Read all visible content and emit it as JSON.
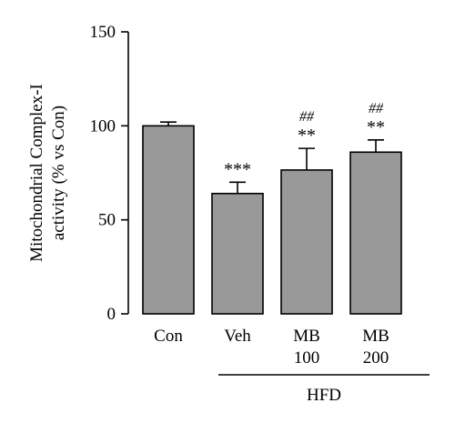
{
  "chart_data": {
    "type": "bar",
    "ylabel_lines": [
      "Mitochondrial Complex-I",
      "activity (% vs Con)"
    ],
    "ylim": [
      0,
      150
    ],
    "yticks": [
      0,
      50,
      100,
      150
    ],
    "categories": [
      {
        "lines": [
          "Con"
        ],
        "value": 100,
        "error": 2,
        "sig": "",
        "sig2": ""
      },
      {
        "lines": [
          "Veh"
        ],
        "value": 64,
        "error": 6,
        "sig": "***",
        "sig2": ""
      },
      {
        "lines": [
          "MB",
          "100"
        ],
        "value": 76.5,
        "error": 11.5,
        "sig": "**",
        "sig2": "##"
      },
      {
        "lines": [
          "MB",
          "200"
        ],
        "value": 86,
        "error": 6.5,
        "sig": "**",
        "sig2": "##"
      }
    ],
    "group_label": "HFD",
    "bar_color": "#999999"
  }
}
